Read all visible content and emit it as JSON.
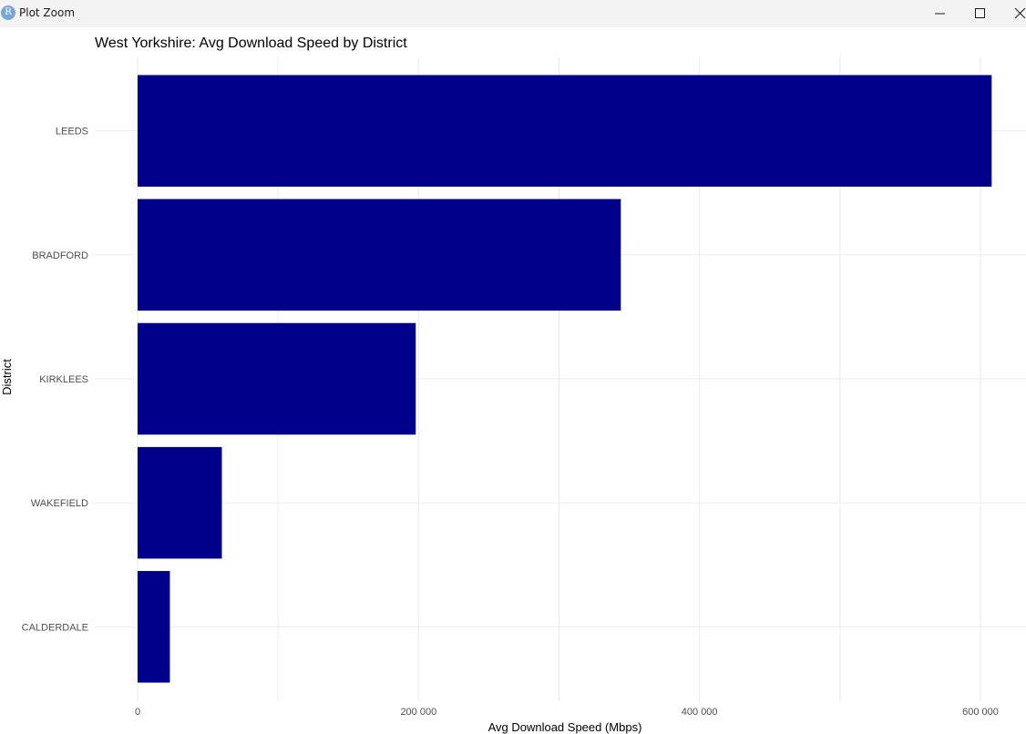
{
  "window": {
    "title": "Plot Zoom",
    "app_icon_letter": "R"
  },
  "colors": {
    "bar": "#00008b",
    "grid": "#ebebeb",
    "text": "#4d4d4d"
  },
  "chart_data": {
    "type": "bar",
    "orientation": "horizontal",
    "title": "West Yorkshire: Avg Download Speed by District",
    "xlabel": "Avg Download Speed (Mbps)",
    "ylabel": "District",
    "categories": [
      "LEEDS",
      "BRADFORD",
      "KIRKLEES",
      "WAKEFIELD",
      "CALDERDALE"
    ],
    "values": [
      608000,
      344000,
      198000,
      60000,
      23000
    ],
    "xlim": [
      0,
      632000
    ],
    "xticks": [
      0,
      200000,
      400000,
      600000
    ],
    "xtick_labels": [
      "0",
      "200 000",
      "400 000",
      "600 000"
    ],
    "grid": true
  }
}
